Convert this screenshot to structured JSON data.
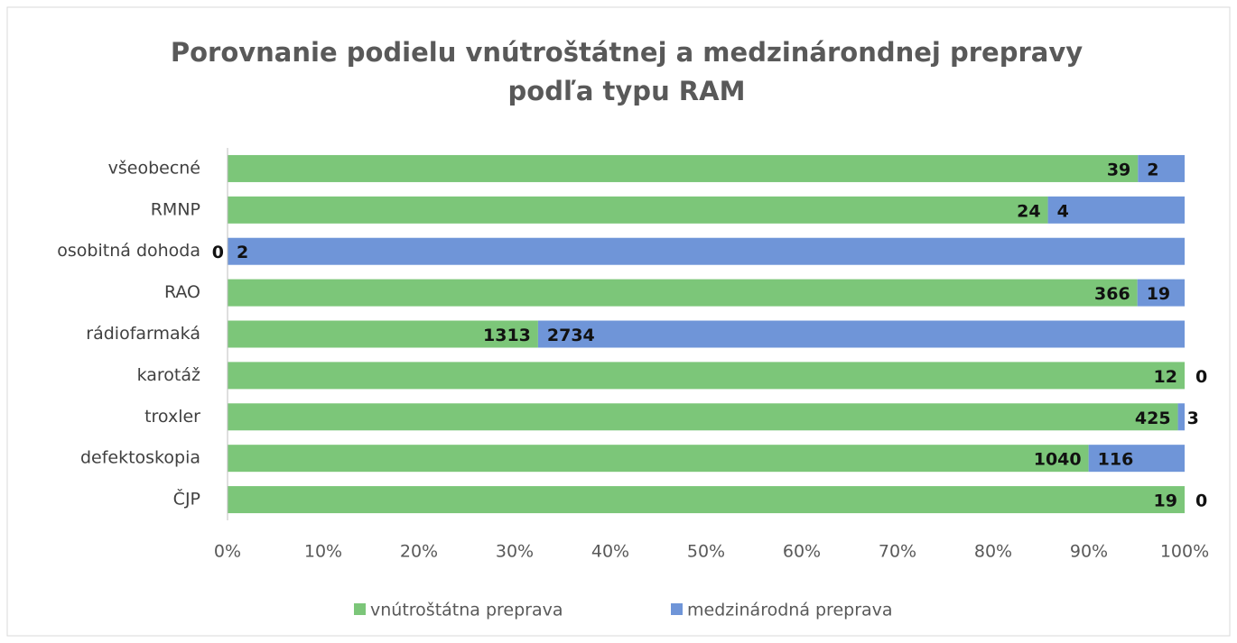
{
  "chart_data": {
    "type": "bar",
    "orientation": "horizontal",
    "stacking": "percent",
    "title": [
      "Porovnanie podielu vnútroštátnej a medzinárondnej prepravy",
      "podľa typu RAM"
    ],
    "categories": [
      "všeobecné",
      "RMNP",
      "osobitná dohoda",
      "RAO",
      "rádiofarmaká",
      "karotáž",
      "troxler",
      "defektoskopia",
      "ČJP"
    ],
    "series": [
      {
        "name": "vnútroštátna preprava",
        "color": "#7cc679",
        "values": [
          39,
          24,
          0,
          366,
          1313,
          12,
          425,
          1040,
          19
        ]
      },
      {
        "name": "medzinárodná preprava",
        "color": "#6f95d8",
        "values": [
          2,
          4,
          2,
          19,
          2734,
          0,
          3,
          116,
          0
        ]
      }
    ],
    "xlim": [
      0,
      100
    ],
    "xticks": [
      {
        "value": 0,
        "label": "0%"
      },
      {
        "value": 10,
        "label": "10%"
      },
      {
        "value": 20,
        "label": "20%"
      },
      {
        "value": 30,
        "label": "30%"
      },
      {
        "value": 40,
        "label": "40%"
      },
      {
        "value": 50,
        "label": "50%"
      },
      {
        "value": 60,
        "label": "60%"
      },
      {
        "value": 70,
        "label": "70%"
      },
      {
        "value": 80,
        "label": "80%"
      },
      {
        "value": 90,
        "label": "90%"
      },
      {
        "value": 100,
        "label": "100%"
      }
    ],
    "legend": "bottom",
    "grid": false
  }
}
